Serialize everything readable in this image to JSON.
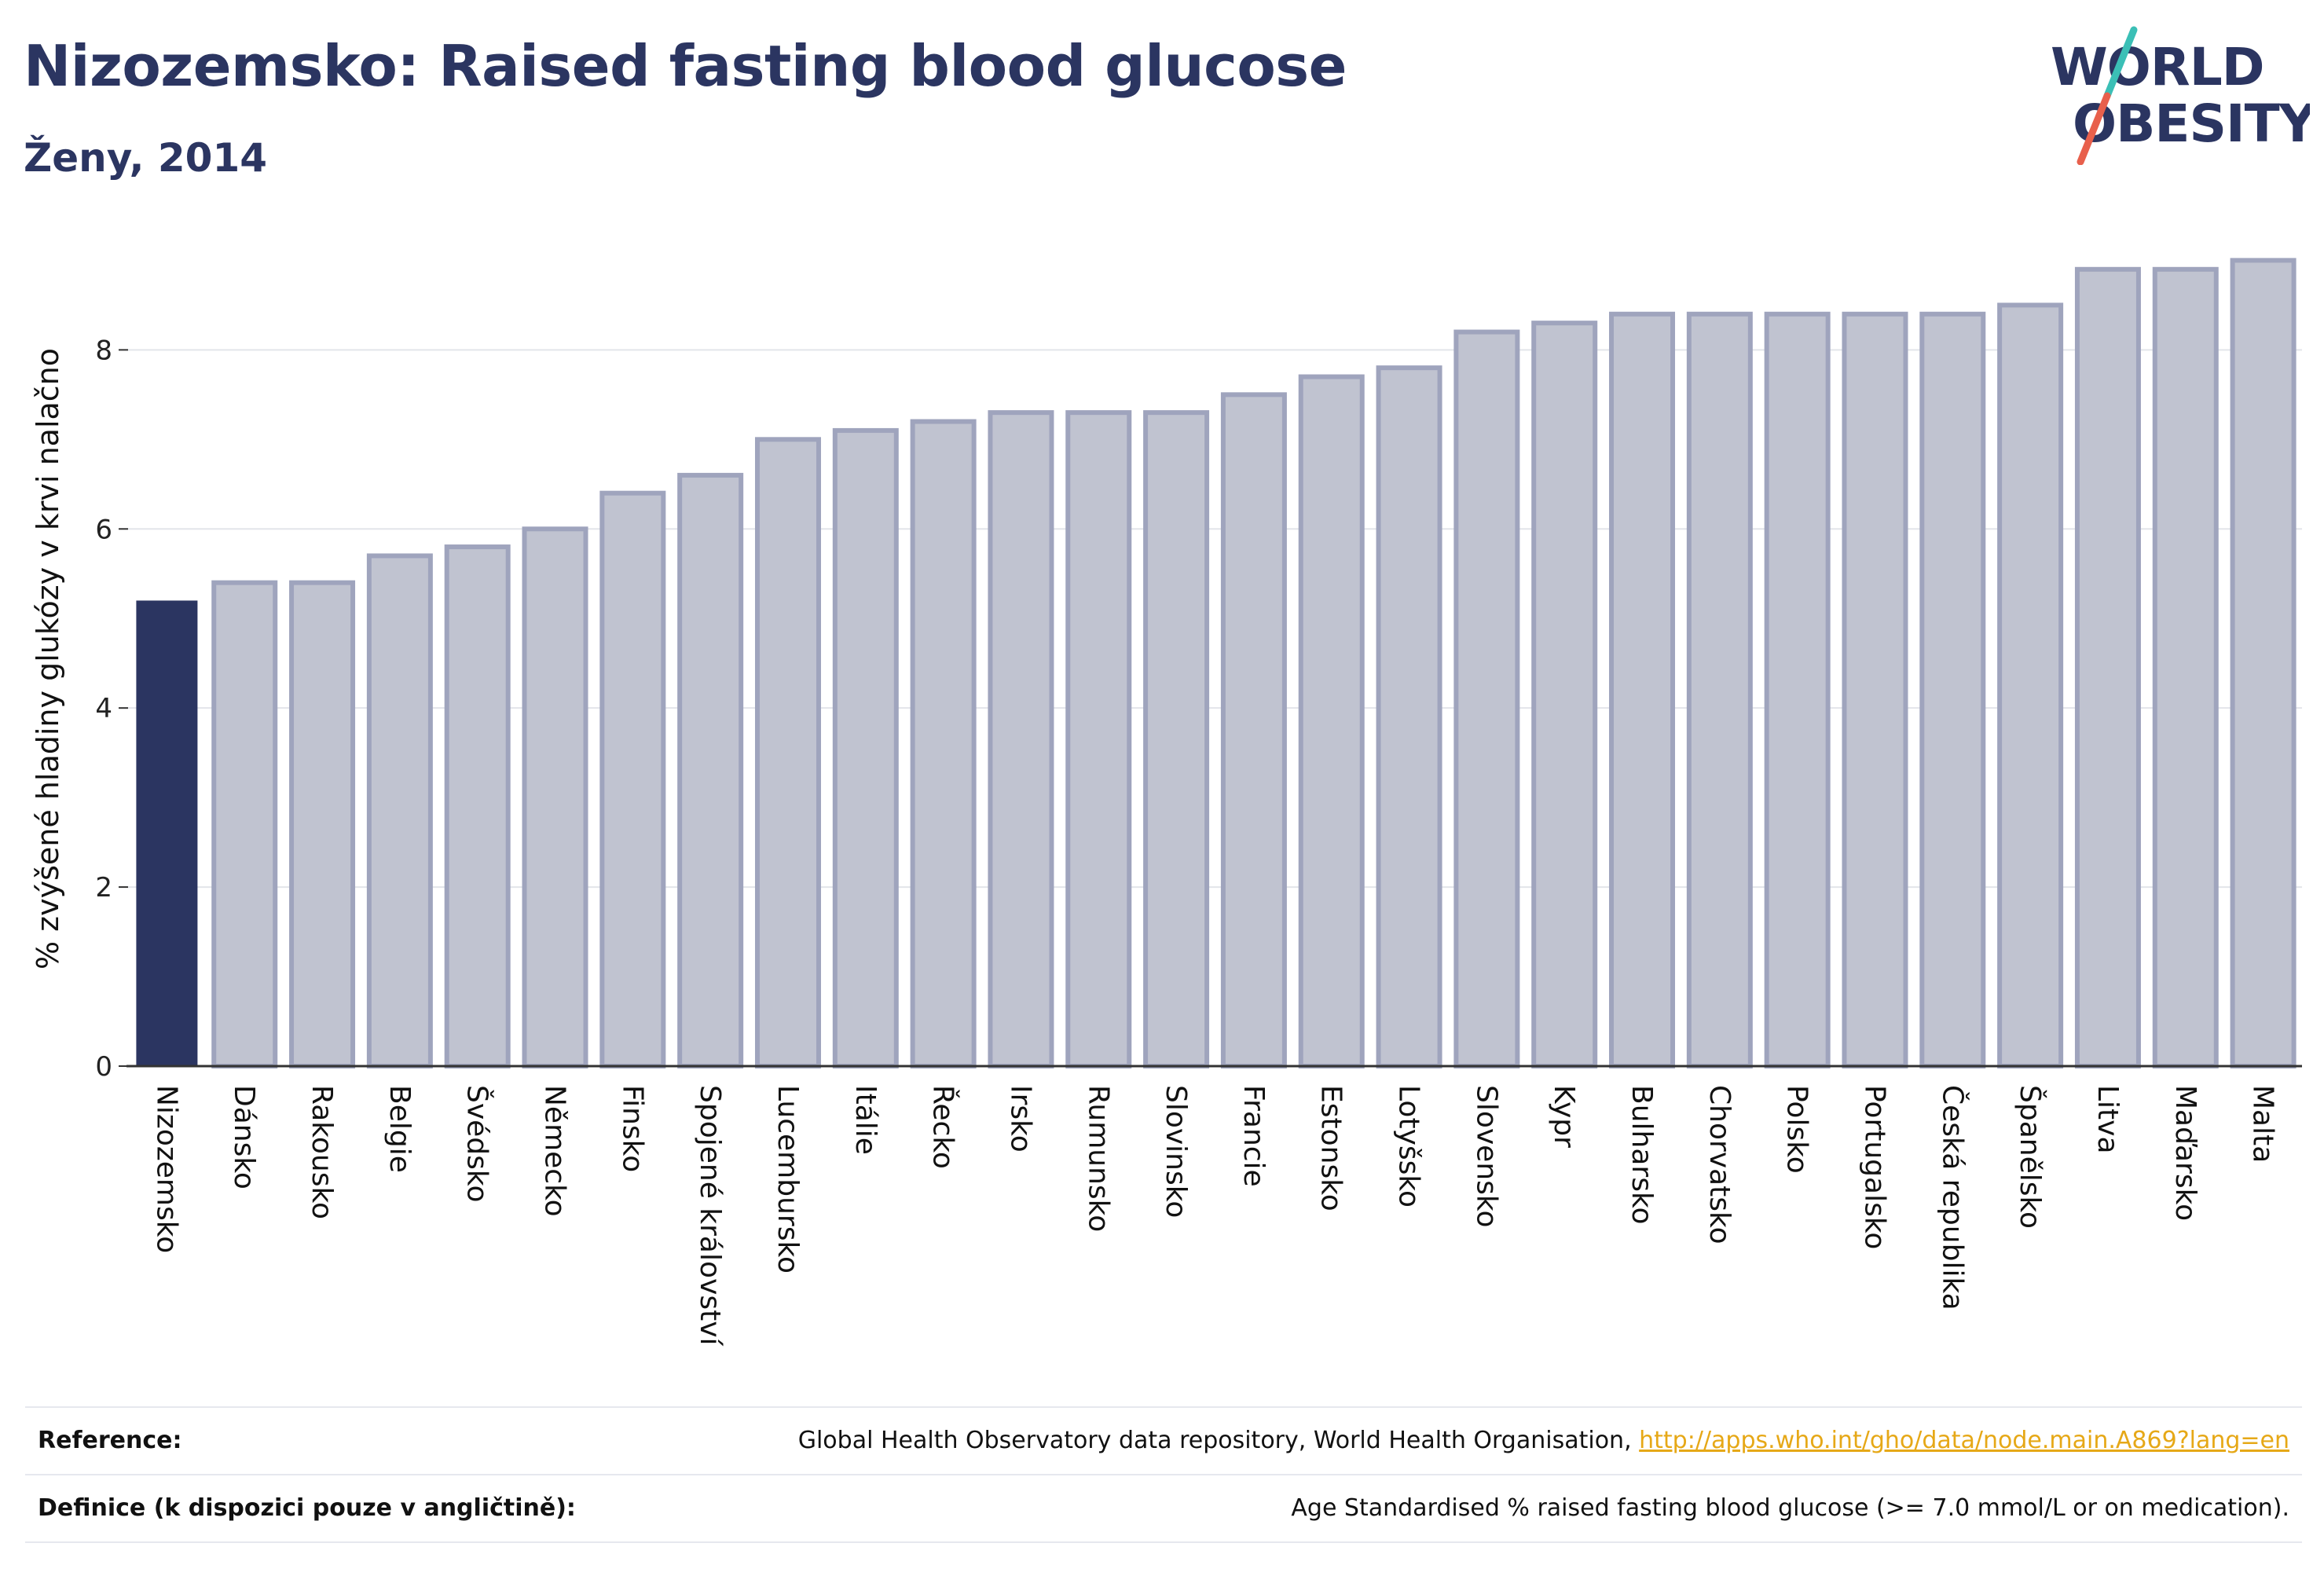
{
  "header": {
    "title": "Nizozemsko: Raised fasting blood glucose",
    "subtitle": "Ženy, 2014"
  },
  "logo": {
    "line1": "WORLD",
    "line2": "OBESITY",
    "accent1": "#3bbfb6",
    "accent2": "#e8604c"
  },
  "colors": {
    "highlight": "#2b3561",
    "bar_fill": "#c0c3d0",
    "bar_stroke": "#9fa4bd",
    "grid": "#e3e5ea"
  },
  "chart_data": {
    "type": "bar",
    "ylabel": "% zvýšené hladiny glukózy v krvi nalačno",
    "xlabel": "",
    "ylim": [
      0,
      9.1
    ],
    "yticks": [
      0,
      2,
      4,
      6,
      8
    ],
    "highlight_category": "Nizozemsko",
    "categories": [
      "Nizozemsko",
      "Dánsko",
      "Rakousko",
      "Belgie",
      "Švédsko",
      "Německo",
      "Finsko",
      "Spojené království",
      "Lucembursko",
      "Itálie",
      "Řecko",
      "Irsko",
      "Rumunsko",
      "Slovinsko",
      "Francie",
      "Estonsko",
      "Lotyšsko",
      "Slovensko",
      "Kypr",
      "Bulharsko",
      "Chorvatsko",
      "Polsko",
      "Portugalsko",
      "Česká republika",
      "Španělsko",
      "Litva",
      "Maďarsko",
      "Malta"
    ],
    "values": [
      5.2,
      5.4,
      5.4,
      5.7,
      5.8,
      6.0,
      6.4,
      6.6,
      7.0,
      7.1,
      7.2,
      7.3,
      7.3,
      7.3,
      7.5,
      7.7,
      7.8,
      8.2,
      8.3,
      8.4,
      8.4,
      8.4,
      8.4,
      8.4,
      8.5,
      8.9,
      8.9,
      9.0
    ]
  },
  "footer": {
    "reference_label": "Reference:",
    "reference_text": "Global Health Observatory data repository, World Health Organisation, ",
    "reference_link": "http://apps.who.int/gho/data/node.main.A869?lang=en",
    "definition_label": "Definice (k dispozici pouze v angličtině):",
    "definition_text": "Age Standardised % raised fasting blood glucose (>= 7.0 mmol/L or on medication)."
  }
}
